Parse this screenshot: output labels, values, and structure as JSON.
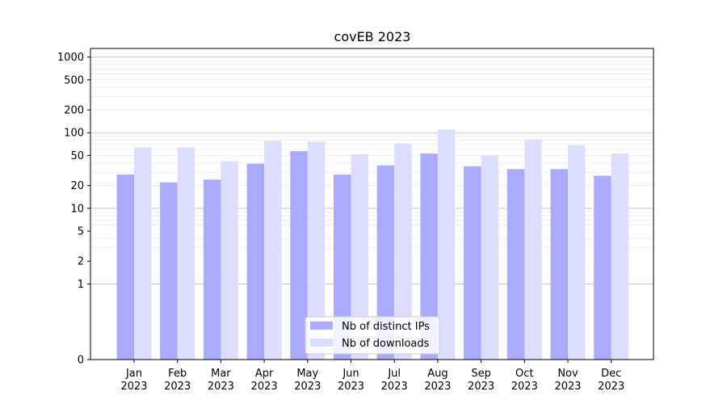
{
  "chart_data": {
    "type": "bar",
    "title": "covEB 2023",
    "xlabel": "",
    "ylabel": "",
    "yscale": "symlog",
    "ylim": [
      0,
      1300
    ],
    "grid": true,
    "legend_position": "lower-center",
    "categories": [
      {
        "month": "Jan",
        "year": "2023"
      },
      {
        "month": "Feb",
        "year": "2023"
      },
      {
        "month": "Mar",
        "year": "2023"
      },
      {
        "month": "Apr",
        "year": "2023"
      },
      {
        "month": "May",
        "year": "2023"
      },
      {
        "month": "Jun",
        "year": "2023"
      },
      {
        "month": "Jul",
        "year": "2023"
      },
      {
        "month": "Aug",
        "year": "2023"
      },
      {
        "month": "Sep",
        "year": "2023"
      },
      {
        "month": "Oct",
        "year": "2023"
      },
      {
        "month": "Nov",
        "year": "2023"
      },
      {
        "month": "Dec",
        "year": "2023"
      }
    ],
    "yticks": [
      0,
      1,
      2,
      5,
      10,
      20,
      50,
      100,
      200,
      500,
      1000
    ],
    "series": [
      {
        "name": "Nb of distinct IPs",
        "color": "#aaaaff",
        "values": [
          28,
          22,
          24,
          39,
          57,
          28,
          37,
          53,
          36,
          33,
          33,
          27
        ]
      },
      {
        "name": "Nb of downloads",
        "color": "#ddddff",
        "values": [
          64,
          64,
          42,
          78,
          76,
          52,
          72,
          110,
          50,
          82,
          68,
          53
        ]
      }
    ]
  }
}
